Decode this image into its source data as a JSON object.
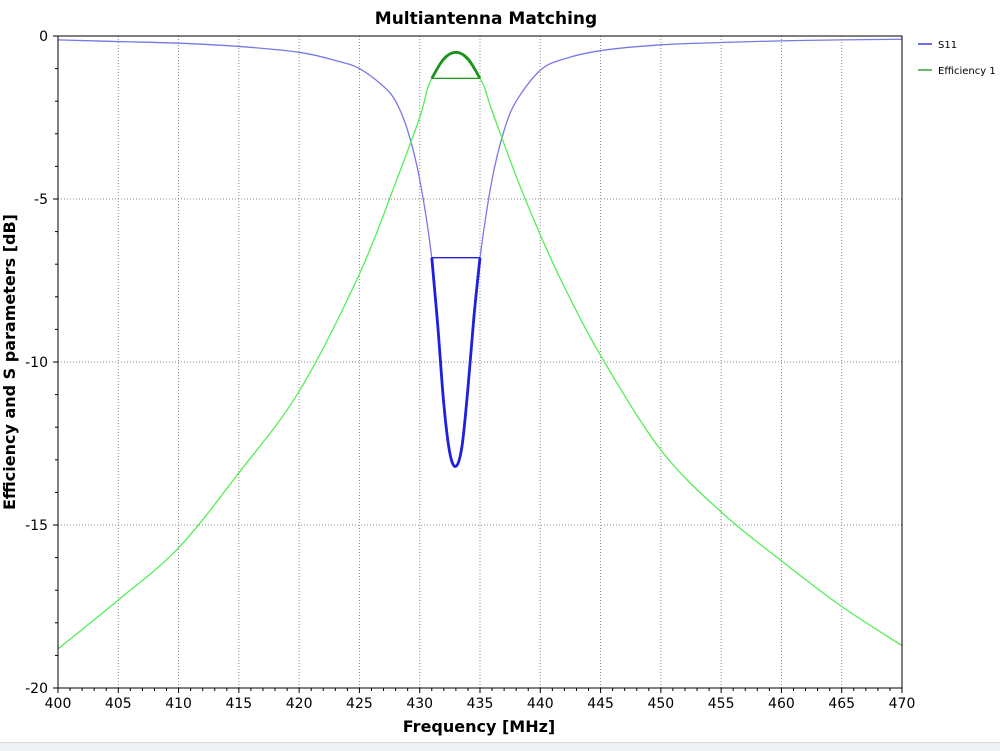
{
  "chart_data": {
    "type": "line",
    "title": "Multiantenna Matching",
    "xlabel": "Frequency [MHz]",
    "ylabel": "Efficiency and S parameters [dB]",
    "xlim": [
      400,
      470
    ],
    "ylim": [
      -20,
      0
    ],
    "xticks": [
      400,
      405,
      410,
      415,
      420,
      425,
      430,
      435,
      440,
      445,
      450,
      455,
      460,
      465,
      470
    ],
    "yticks": [
      0,
      -5,
      -10,
      -15,
      -20
    ],
    "grid": true,
    "legend_position": "top-right",
    "series": [
      {
        "name": "S11",
        "color": "#7878e6",
        "x": [
          400,
          405,
          410,
          415,
          420,
          423,
          425,
          427,
          428,
          429,
          430,
          431,
          431.5,
          432,
          432.5,
          433,
          433.5,
          434,
          434.5,
          435,
          436,
          437,
          438,
          440,
          442,
          445,
          450,
          455,
          460,
          465,
          470
        ],
        "y": [
          -0.12,
          -0.17,
          -0.22,
          -0.32,
          -0.5,
          -0.75,
          -1.0,
          -1.55,
          -2.0,
          -2.9,
          -4.4,
          -6.8,
          -8.9,
          -11.3,
          -12.8,
          -13.2,
          -12.6,
          -10.8,
          -8.6,
          -6.8,
          -4.4,
          -2.9,
          -2.0,
          -1.05,
          -0.7,
          -0.45,
          -0.27,
          -0.2,
          -0.15,
          -0.12,
          -0.1
        ]
      },
      {
        "name": "Efficiency 1",
        "color": "#55ee55",
        "x": [
          400,
          405,
          410,
          415,
          420,
          425,
          428,
          430,
          431,
          433,
          435,
          436,
          438,
          440,
          442,
          445,
          450,
          455,
          460,
          465,
          470
        ],
        "y": [
          -18.8,
          -17.3,
          -15.7,
          -13.4,
          -10.9,
          -7.3,
          -4.5,
          -2.5,
          -1.3,
          -0.5,
          -1.3,
          -2.3,
          -4.3,
          -6.1,
          -7.7,
          -9.8,
          -12.7,
          -14.6,
          -16.1,
          -17.5,
          -18.7
        ]
      }
    ],
    "highlights": [
      {
        "series": "S11",
        "color": "#1f1fe0",
        "x": [
          431,
          431.5,
          432,
          432.5,
          433,
          433.5,
          434,
          434.5,
          435
        ],
        "y": [
          -6.8,
          -8.9,
          -11.3,
          -12.8,
          -13.2,
          -12.6,
          -10.8,
          -8.6,
          -6.8
        ],
        "band_x": [
          431,
          435
        ],
        "band_level": -6.8
      },
      {
        "series": "Efficiency 1",
        "color": "#1c931c",
        "x": [
          431,
          432,
          433,
          434,
          435
        ],
        "y": [
          -1.3,
          -0.7,
          -0.5,
          -0.7,
          -1.3
        ],
        "band_x": [
          431,
          435
        ],
        "band_level": -1.3
      }
    ]
  }
}
